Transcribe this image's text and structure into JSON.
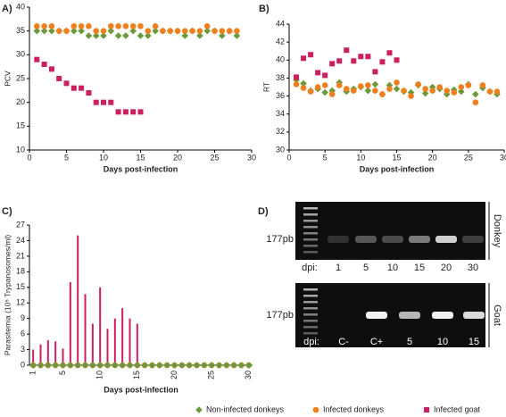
{
  "chart_data": [
    {
      "type": "scatter",
      "title": "A)",
      "xlabel": "Days post-infection",
      "ylabel": "PCV",
      "xlim": [
        0,
        30
      ],
      "xticks": [
        0,
        5,
        10,
        15,
        20,
        25,
        30
      ],
      "ylim": [
        10,
        40
      ],
      "yticks": [
        10,
        15,
        20,
        25,
        30,
        35,
        40
      ],
      "series": [
        {
          "name": "Non-infected donkeys",
          "color": "#6b9a3b",
          "marker": "diamond",
          "x": [
            1,
            2,
            3,
            4,
            5,
            6,
            7,
            8,
            9,
            10,
            11,
            12,
            13,
            14,
            15,
            16,
            17,
            18,
            19,
            20,
            21,
            22,
            23,
            24,
            25,
            26,
            27,
            28
          ],
          "values": [
            35,
            35,
            35,
            35,
            35,
            35,
            35,
            34,
            34,
            34,
            35,
            34,
            34,
            35,
            34,
            34,
            35,
            35,
            35,
            35,
            34,
            35,
            34,
            35,
            35,
            34,
            35,
            34
          ]
        },
        {
          "name": "Infected donkeys",
          "color": "#f07f1e",
          "marker": "circle",
          "x": [
            1,
            2,
            3,
            4,
            5,
            6,
            7,
            8,
            9,
            10,
            11,
            12,
            13,
            14,
            15,
            16,
            17,
            18,
            19,
            20,
            21,
            22,
            23,
            24,
            25,
            26,
            27,
            28
          ],
          "values": [
            36,
            36,
            36,
            35,
            35,
            36,
            36,
            36,
            35,
            35,
            36,
            36,
            36,
            36,
            36,
            35,
            36,
            35,
            35,
            35,
            35,
            35,
            35,
            36,
            35,
            35,
            35,
            35
          ]
        },
        {
          "name": "Infected goat",
          "color": "#cc1f5f",
          "marker": "square",
          "x": [
            1,
            2,
            3,
            4,
            5,
            6,
            7,
            8,
            9,
            10,
            11,
            12,
            13,
            14,
            15
          ],
          "values": [
            29,
            28,
            27,
            25,
            24,
            23,
            23,
            22,
            20,
            20,
            20,
            18,
            18,
            18,
            18
          ]
        }
      ]
    },
    {
      "type": "scatter",
      "title": "B)",
      "xlabel": "Days post-infection",
      "ylabel": "RT",
      "xlim": [
        0,
        30
      ],
      "xticks": [
        0,
        5,
        10,
        15,
        20,
        25,
        30
      ],
      "ylim": [
        30,
        44
      ],
      "yticks": [
        30,
        32,
        34,
        36,
        38,
        40,
        42,
        44
      ],
      "series": [
        {
          "color": "#6b9a3b",
          "marker": "diamond",
          "x": [
            1,
            2,
            3,
            4,
            5,
            6,
            7,
            8,
            9,
            10,
            11,
            12,
            13,
            14,
            15,
            16,
            17,
            18,
            19,
            20,
            21,
            22,
            23,
            24,
            25,
            26,
            27,
            28,
            29
          ],
          "values": [
            37.8,
            37.4,
            36.6,
            36.8,
            36.4,
            36.6,
            37.5,
            36.5,
            36.8,
            37,
            36.6,
            37.3,
            36.2,
            37.2,
            36.8,
            36.5,
            36.4,
            37.2,
            36.3,
            37,
            36.8,
            36.2,
            36.7,
            36.5,
            37.3,
            36.2,
            36.9,
            36.5,
            36.2
          ]
        },
        {
          "color": "#f07f1e",
          "marker": "circle",
          "x": [
            1,
            2,
            3,
            4,
            5,
            6,
            7,
            8,
            9,
            10,
            11,
            12,
            13,
            14,
            15,
            16,
            17,
            18,
            19,
            20,
            21,
            22,
            23,
            24,
            25,
            26,
            27,
            28,
            29
          ],
          "values": [
            37.3,
            36.9,
            36.5,
            37,
            37.2,
            36.2,
            37.2,
            36.8,
            36.6,
            37.1,
            37.2,
            36.6,
            36.2,
            36.8,
            37.5,
            36.6,
            36,
            37.3,
            36.8,
            36.6,
            37,
            36.6,
            36.4,
            37,
            37.2,
            35.3,
            37.2,
            36.5,
            36.5
          ]
        },
        {
          "color": "#cc1f5f",
          "marker": "square",
          "x": [
            1,
            2,
            3,
            4,
            5,
            6,
            7,
            8,
            9,
            10,
            11,
            12,
            13,
            14,
            15
          ],
          "values": [
            38.1,
            40.2,
            40.6,
            38.6,
            38.3,
            39.6,
            39.9,
            41.1,
            39.9,
            40.4,
            40.4,
            38.7,
            39.8,
            40.8,
            40
          ]
        }
      ]
    },
    {
      "type": "bar",
      "title": "C)",
      "xlabel": "Days post-infection",
      "ylabel": "Parasitemia (10⁵ Trypanosomes/ml)",
      "xlim": [
        0.5,
        30.5
      ],
      "xticks": [
        1,
        5,
        10,
        15,
        20,
        25,
        30
      ],
      "ylim": [
        0,
        27
      ],
      "yticks": [
        0,
        3,
        6,
        9,
        12,
        15,
        18,
        21,
        24,
        27
      ],
      "series": [
        {
          "color": "#cc1f5f",
          "marker": "bar",
          "x": [
            1,
            2,
            3,
            4,
            5,
            6,
            7,
            8,
            9,
            10,
            11,
            12,
            13,
            14,
            15
          ],
          "values": [
            3,
            4,
            4.8,
            4.6,
            3.2,
            16,
            25,
            13.7,
            8,
            15,
            7,
            9,
            11,
            9,
            8
          ]
        },
        {
          "color": "#f07f1e",
          "marker": "circle",
          "x": [
            1,
            2,
            3,
            4,
            5,
            6,
            7,
            8,
            9,
            10,
            11,
            12,
            13,
            14,
            15,
            16,
            17,
            18,
            19,
            20,
            21,
            22,
            23,
            24,
            25,
            26,
            27,
            28,
            29,
            30
          ],
          "values": [
            0,
            0,
            0,
            0,
            0,
            0,
            0,
            0,
            0,
            0,
            0,
            0,
            0,
            0,
            0,
            0,
            0,
            0,
            0,
            0,
            0,
            0,
            0,
            0,
            0,
            0,
            0,
            0,
            0,
            0
          ]
        },
        {
          "color": "#6b9a3b",
          "marker": "diamond",
          "x": [
            1,
            2,
            3,
            4,
            5,
            6,
            7,
            8,
            9,
            10,
            11,
            12,
            13,
            14,
            15,
            16,
            17,
            18,
            19,
            20,
            21,
            22,
            23,
            24,
            25,
            26,
            27,
            28,
            29,
            30
          ],
          "values": [
            0,
            0,
            0,
            0,
            0,
            0,
            0,
            0,
            0,
            0,
            0,
            0,
            0,
            0,
            0,
            0,
            0,
            0,
            0,
            0,
            0,
            0,
            0,
            0,
            0,
            0,
            0,
            0,
            0,
            0
          ]
        }
      ]
    }
  ],
  "gel": {
    "title": "D)",
    "panels": [
      {
        "label": "Donkey",
        "band_label": "177pb",
        "dpi_label": "dpi:",
        "lanes": [
          "1",
          "5",
          "10",
          "15",
          "20",
          "30"
        ]
      },
      {
        "label": "Goat",
        "band_label": "177pb",
        "dpi_label": "dpi:",
        "lanes": [
          "C-",
          "C+",
          "5",
          "10",
          "15"
        ]
      }
    ]
  }
}
